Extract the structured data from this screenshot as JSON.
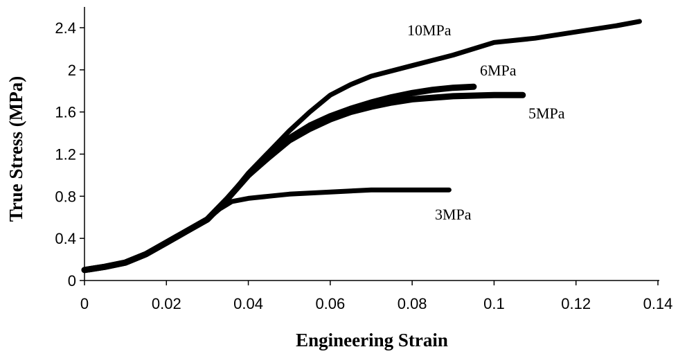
{
  "chart_data": {
    "type": "line",
    "title": "",
    "xlabel": "Engineering Strain",
    "ylabel": "True Stress (MPa)",
    "xlim": [
      0,
      0.14
    ],
    "ylim": [
      0,
      2.4
    ],
    "xticks": [
      0,
      0.02,
      0.04,
      0.06,
      0.08,
      0.1,
      0.12,
      0.14
    ],
    "xtick_labels": [
      "0",
      "0.02",
      "0.04",
      "0.06",
      "0.08",
      "0.1",
      "0.12",
      "0.14"
    ],
    "yticks": [
      0,
      0.4,
      0.8,
      1.2,
      1.6,
      2,
      2.4
    ],
    "ytick_labels": [
      "0",
      "0.4",
      "0.8",
      "1.2",
      "1.6",
      "2",
      "2.4"
    ],
    "grid": false,
    "legend": "none",
    "series": [
      {
        "name": "10MPa",
        "color": "#000000",
        "x": [
          0,
          0.005,
          0.01,
          0.015,
          0.02,
          0.025,
          0.03,
          0.035,
          0.04,
          0.045,
          0.05,
          0.055,
          0.06,
          0.065,
          0.07,
          0.08,
          0.09,
          0.1,
          0.11,
          0.12,
          0.13,
          0.1355
        ],
        "y": [
          0.1,
          0.13,
          0.17,
          0.25,
          0.36,
          0.47,
          0.58,
          0.78,
          1.02,
          1.22,
          1.42,
          1.6,
          1.76,
          1.86,
          1.94,
          2.04,
          2.14,
          2.26,
          2.3,
          2.36,
          2.42,
          2.46
        ]
      },
      {
        "name": "6MPa",
        "color": "#000000",
        "x": [
          0,
          0.005,
          0.01,
          0.015,
          0.02,
          0.025,
          0.03,
          0.035,
          0.04,
          0.045,
          0.05,
          0.055,
          0.06,
          0.065,
          0.07,
          0.075,
          0.08,
          0.085,
          0.09,
          0.095
        ],
        "y": [
          0.1,
          0.13,
          0.17,
          0.25,
          0.36,
          0.47,
          0.58,
          0.78,
          1.0,
          1.18,
          1.35,
          1.47,
          1.56,
          1.63,
          1.69,
          1.74,
          1.78,
          1.81,
          1.83,
          1.84
        ]
      },
      {
        "name": "5MPa",
        "color": "#000000",
        "x": [
          0,
          0.005,
          0.01,
          0.015,
          0.02,
          0.025,
          0.03,
          0.035,
          0.04,
          0.045,
          0.05,
          0.055,
          0.06,
          0.065,
          0.07,
          0.075,
          0.08,
          0.09,
          0.1,
          0.107
        ],
        "y": [
          0.1,
          0.13,
          0.17,
          0.25,
          0.36,
          0.47,
          0.58,
          0.78,
          1.0,
          1.17,
          1.33,
          1.44,
          1.53,
          1.6,
          1.65,
          1.69,
          1.72,
          1.75,
          1.76,
          1.76
        ]
      },
      {
        "name": "3MPa",
        "color": "#000000",
        "x": [
          0,
          0.005,
          0.01,
          0.015,
          0.02,
          0.025,
          0.03,
          0.033,
          0.036,
          0.04,
          0.045,
          0.05,
          0.055,
          0.06,
          0.07,
          0.08,
          0.089
        ],
        "y": [
          0.1,
          0.13,
          0.17,
          0.25,
          0.36,
          0.47,
          0.58,
          0.68,
          0.75,
          0.78,
          0.8,
          0.82,
          0.83,
          0.84,
          0.86,
          0.86,
          0.86
        ]
      }
    ]
  }
}
